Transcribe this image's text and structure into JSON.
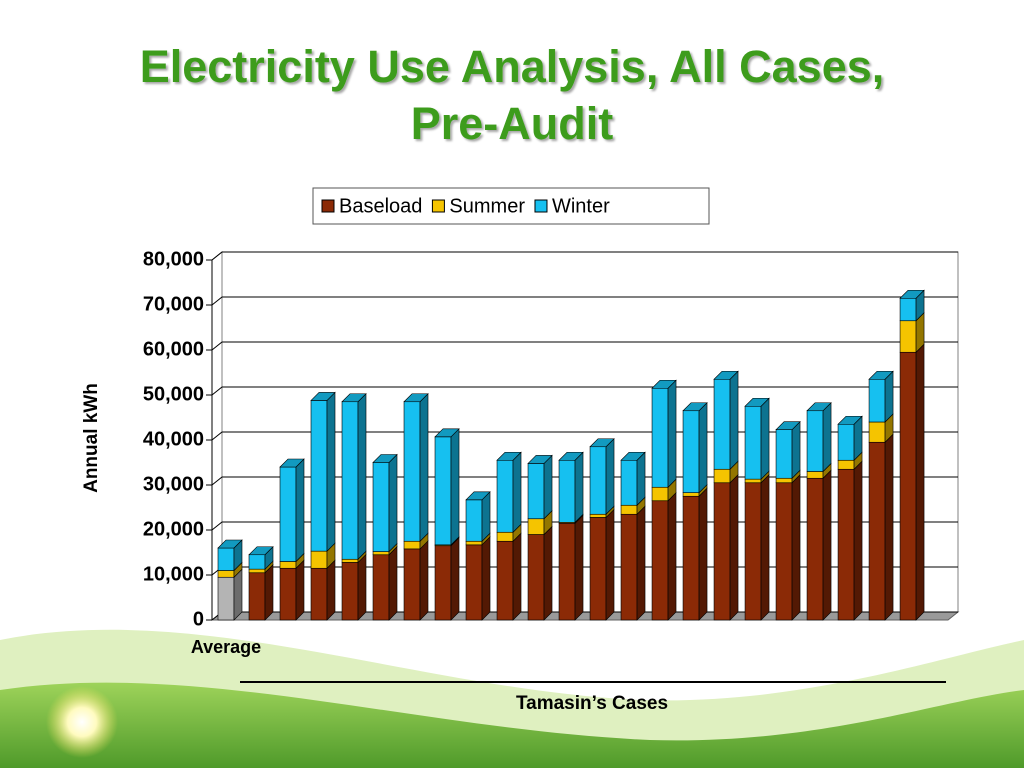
{
  "chart_data": {
    "type": "stacked_bar_3d",
    "title": [
      "Electricity Use Analysis, All  Cases,",
      "Pre-Audit"
    ],
    "y_label": "Annual kWh",
    "x_label": "Tamasin’s Cases",
    "categories": [
      "Average",
      null,
      null,
      null,
      null,
      null,
      null,
      null,
      null,
      null,
      null,
      null,
      null,
      null,
      null,
      null,
      null,
      null,
      null,
      null,
      null,
      null,
      null
    ],
    "series": [
      {
        "name": "Baseload",
        "color": "#8b2a06",
        "values": [
          9500,
          10500,
          11500,
          11500,
          12800,
          14500,
          15800,
          16500,
          16700,
          17500,
          19000,
          21500,
          22800,
          23500,
          26500,
          27500,
          30500,
          30500,
          30500,
          31500,
          33500,
          39500,
          59500
        ]
      },
      {
        "name": "Summer",
        "color": "#f5c400",
        "values": [
          1500,
          800,
          1500,
          3800,
          700,
          700,
          1700,
          200,
          800,
          2000,
          3500,
          200,
          700,
          2000,
          3000,
          800,
          3000,
          800,
          1000,
          1500,
          2000,
          4500,
          7000
        ]
      },
      {
        "name": "Winter",
        "color": "#16c0f0",
        "values": [
          5000,
          3200,
          21000,
          33500,
          35000,
          19800,
          31000,
          24000,
          9200,
          16000,
          12300,
          13800,
          15000,
          10000,
          22000,
          18200,
          20000,
          16200,
          10800,
          13500,
          8000,
          9500,
          5000
        ]
      }
    ],
    "highlight": {
      "index": 0,
      "color": "#b4b4b4"
    },
    "ylim": [
      0,
      80000
    ],
    "yticks": [
      0,
      {
        "value": 10000,
        "label": "10,000"
      },
      {
        "value": 20000,
        "label": "20,000"
      },
      {
        "value": 30000,
        "label": "30,000"
      },
      {
        "value": 40000,
        "label": "40,000"
      },
      {
        "value": 50000,
        "label": "50,000"
      },
      {
        "value": 60000,
        "label": "60,000"
      },
      {
        "value": 70000,
        "label": "70,000"
      },
      {
        "value": 80000,
        "label": "80,000"
      }
    ],
    "grid": true,
    "legend": "top"
  }
}
